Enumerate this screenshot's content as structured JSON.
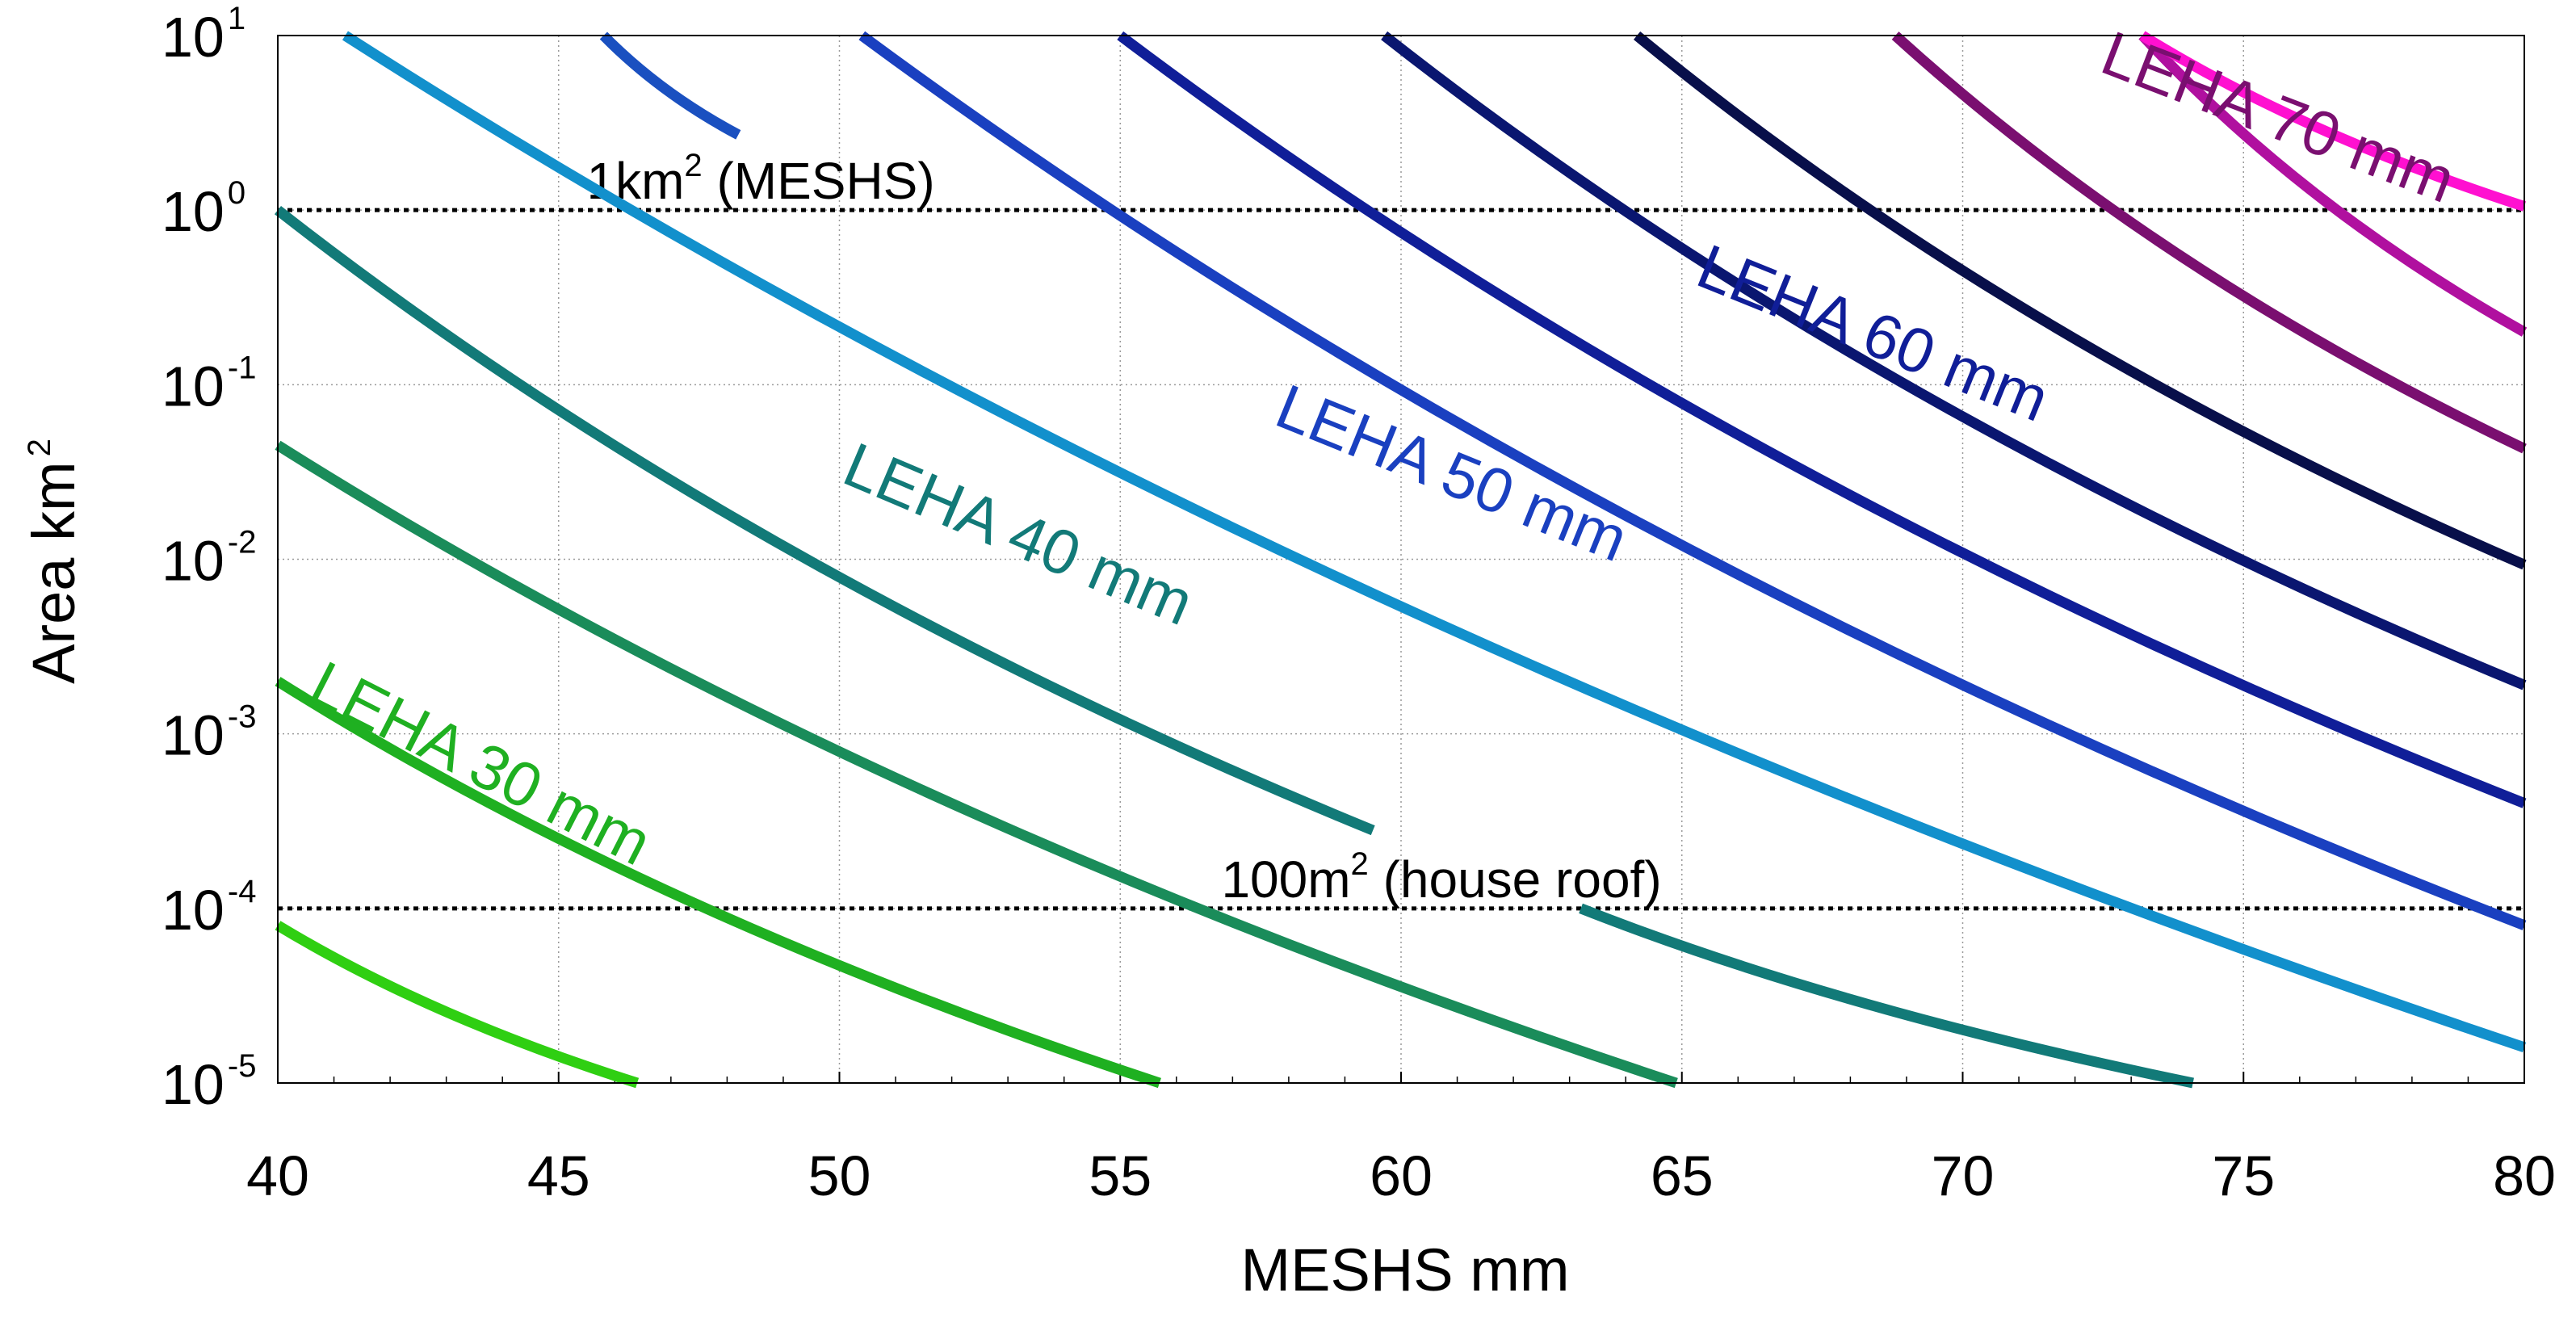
{
  "chart_data": {
    "type": "line",
    "title": "",
    "xlabel": "MESHS mm",
    "ylabel": "Area km",
    "ylabel_exponent": "2",
    "xlim": [
      40,
      80
    ],
    "ylim": [
      1e-05,
      10
    ],
    "yscale": "log",
    "grid": true,
    "x_ticks": [
      {
        "value": 40,
        "label": "40"
      },
      {
        "value": 45,
        "label": "45"
      },
      {
        "value": 50,
        "label": "50"
      },
      {
        "value": 55,
        "label": "55"
      },
      {
        "value": 60,
        "label": "60"
      },
      {
        "value": 65,
        "label": "65"
      },
      {
        "value": 70,
        "label": "70"
      },
      {
        "value": 75,
        "label": "75"
      },
      {
        "value": 80,
        "label": "80"
      }
    ],
    "y_ticks": [
      {
        "value": 10,
        "base": "10",
        "exp": "1"
      },
      {
        "value": 1,
        "base": "10",
        "exp": "0"
      },
      {
        "value": 0.1,
        "base": "10",
        "exp": "-1"
      },
      {
        "value": 0.01,
        "base": "10",
        "exp": "-2"
      },
      {
        "value": 0.001,
        "base": "10",
        "exp": "-3"
      },
      {
        "value": 0.0001,
        "base": "10",
        "exp": "-4"
      },
      {
        "value": 1e-05,
        "base": "10",
        "exp": "-5"
      }
    ],
    "reference_lines": [
      {
        "y": 1,
        "label": "1km",
        "label_exp": "2",
        "label_suffix": " (MESHS)",
        "label_x": 45.5
      },
      {
        "y": 0.0001,
        "label": "100m",
        "label_exp": "2",
        "label_suffix": " (house roof)",
        "label_x": 56.8
      }
    ],
    "series": [
      {
        "name": "c1",
        "color": "#2fcf12",
        "points": [
          [
            40,
            8e-05
          ],
          [
            46.4,
            1e-05
          ]
        ]
      },
      {
        "name": "c2",
        "color": "#1fb021",
        "points": [
          [
            40,
            0.002
          ],
          [
            55.7,
            1e-05
          ]
        ]
      },
      {
        "name": "c3",
        "color": "#1a8c5a",
        "points": [
          [
            40,
            0.045
          ],
          [
            64.9,
            1e-05
          ]
        ]
      },
      {
        "name": "c4",
        "color": "#127a78",
        "points": [
          [
            40,
            1
          ],
          [
            59.5,
            0.00028
          ]
        ]
      },
      {
        "name": "c5",
        "color": "#127a78",
        "points": [
          [
            63.2,
            0.0001
          ],
          [
            74.1,
            1e-05
          ]
        ]
      },
      {
        "name": "c6",
        "color": "#1290cc",
        "points": [
          [
            41.2,
            10
          ],
          [
            80,
            1.6e-05
          ]
        ]
      },
      {
        "name": "c7",
        "color": "#1a50c0",
        "points": [
          [
            45.8,
            10
          ],
          [
            48.2,
            2.7
          ]
        ]
      },
      {
        "name": "c8",
        "color": "#1a40c0",
        "points": [
          [
            50.4,
            10
          ],
          [
            80,
            8e-05
          ]
        ]
      },
      {
        "name": "c9",
        "color": "#101e98",
        "points": [
          [
            55,
            10
          ],
          [
            80,
            0.0004
          ]
        ]
      },
      {
        "name": "c10",
        "color": "#0a1670",
        "points": [
          [
            59.7,
            10
          ],
          [
            80,
            0.0019
          ]
        ]
      },
      {
        "name": "c11",
        "color": "#080f4a",
        "points": [
          [
            64.2,
            10
          ],
          [
            80,
            0.0093
          ]
        ]
      },
      {
        "name": "c12",
        "color": "#7a0f70",
        "points": [
          [
            68.8,
            10
          ],
          [
            80,
            0.043
          ]
        ]
      },
      {
        "name": "c13",
        "color": "#b0109f",
        "points": [
          [
            73.2,
            10
          ],
          [
            80,
            0.2
          ]
        ]
      },
      {
        "name": "c14",
        "color": "#ff10d0",
        "points": [
          [
            73.2,
            10
          ],
          [
            80,
            1.05
          ]
        ]
      }
    ],
    "annotations": [
      {
        "text": "LEHA 30 mm",
        "color": "#1fb021",
        "x": 40.5,
        "y": 0.0016,
        "angle": 27
      },
      {
        "text": "LEHA 40 mm",
        "color": "#127a78",
        "x": 50,
        "y": 0.028,
        "angle": 23
      },
      {
        "text": "LEHA 50 mm",
        "color": "#1a40c0",
        "x": 57.7,
        "y": 0.06,
        "angle": 22
      },
      {
        "text": "LEHA 60 mm",
        "color": "#101e98",
        "x": 65.2,
        "y": 0.38,
        "angle": 22
      },
      {
        "text": "LEHA 70 mm",
        "color": "#7a0f70",
        "x": 72.4,
        "y": 6.3,
        "angle": 21
      }
    ]
  }
}
